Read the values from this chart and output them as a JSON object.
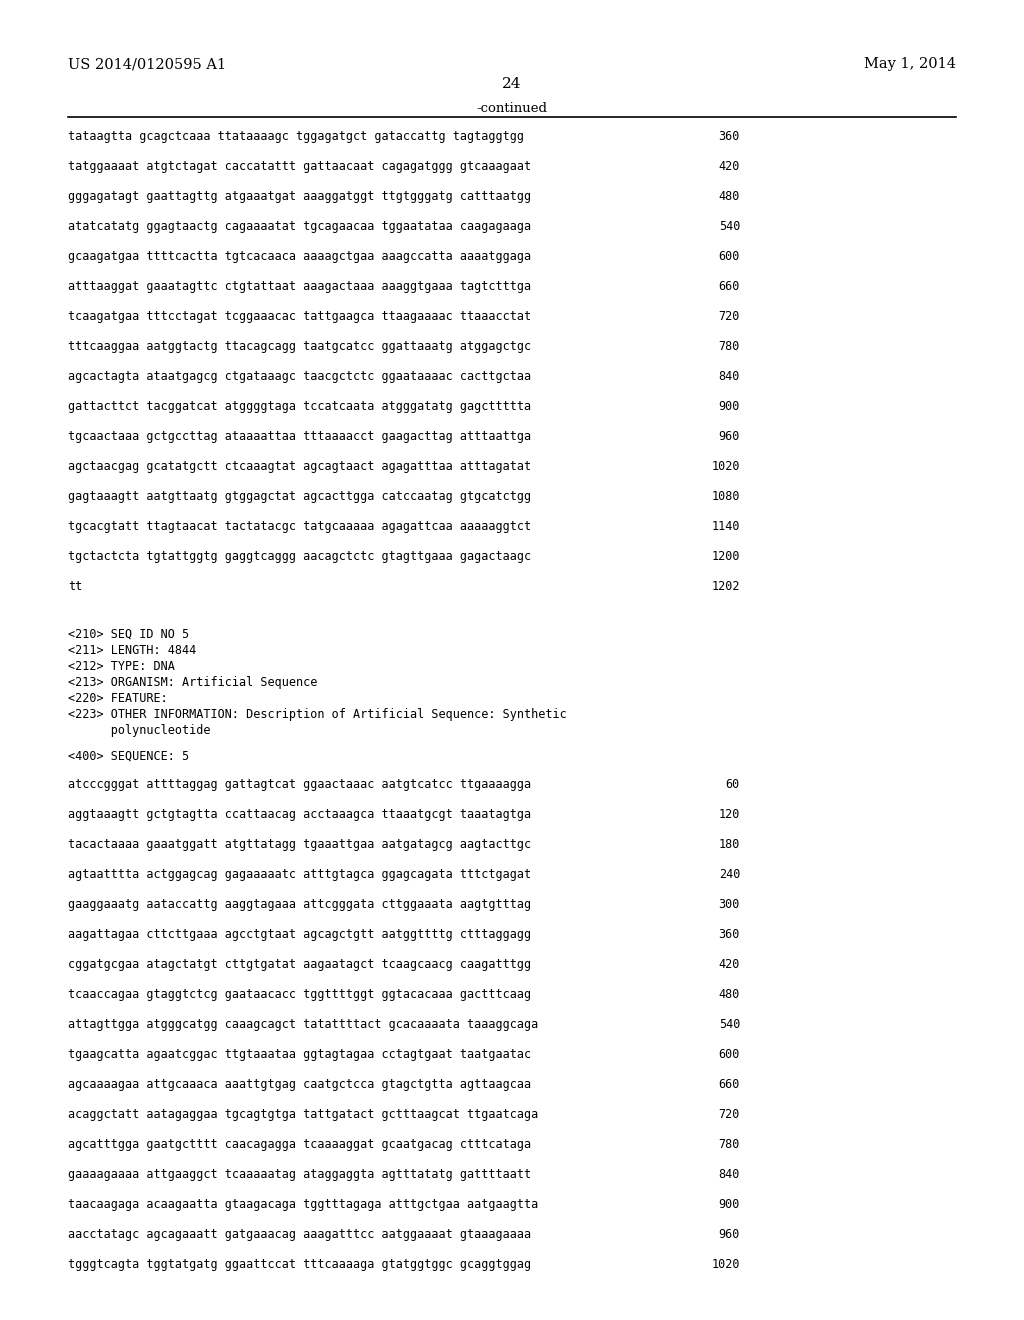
{
  "header_left": "US 2014/0120595 A1",
  "header_right": "May 1, 2014",
  "page_number": "24",
  "continued_label": "-continued",
  "background_color": "#ffffff",
  "text_color": "#000000",
  "mono_font_size": 8.5,
  "sequence_lines": [
    [
      "tataagtta gcagctcaaa ttataaaagc tggagatgct gataccattg tagtaggtgg",
      "360"
    ],
    [
      "tatggaaaat atgtctagat caccatattt gattaacaat cagagatggg gtcaaagaat",
      "420"
    ],
    [
      "gggagatagt gaattagttg atgaaatgat aaaggatggt ttgtgggatg catttaatgg",
      "480"
    ],
    [
      "atatcatatg ggagtaactg cagaaaatat tgcagaacaa tggaatataa caagagaaga",
      "540"
    ],
    [
      "gcaagatgaa ttttcactta tgtcacaaca aaaagctgaa aaagccatta aaaatggaga",
      "600"
    ],
    [
      "atttaaggat gaaatagttc ctgtattaat aaagactaaa aaaggtgaaa tagtctttga",
      "660"
    ],
    [
      "tcaagatgaa tttcctagat tcggaaacac tattgaagca ttaagaaaac ttaaacctat",
      "720"
    ],
    [
      "tttcaaggaa aatggtactg ttacagcagg taatgcatcc ggattaaatg atggagctgc",
      "780"
    ],
    [
      "agcactagta ataatgagcg ctgataaagc taacgctctc ggaataaaac cacttgctaa",
      "840"
    ],
    [
      "gattacttct tacggatcat atggggtaga tccatcaata atgggatatg gagcttttta",
      "900"
    ],
    [
      "tgcaactaaa gctgccttag ataaaattaa tttaaaacct gaagacttag atttaattga",
      "960"
    ],
    [
      "agctaacgag gcatatgctt ctcaaagtat agcagtaact agagatttaa atttagatat",
      "1020"
    ],
    [
      "gagtaaagtt aatgttaatg gtggagctat agcacttgga catccaatag gtgcatctgg",
      "1080"
    ],
    [
      "tgcacgtatt ttagtaacat tactatacgc tatgcaaaaa agagattcaa aaaaaggtct",
      "1140"
    ],
    [
      "tgctactcta tgtattggtg gaggtcaggg aacagctctc gtagttgaaa gagactaagc",
      "1200"
    ],
    [
      "tt",
      "1202"
    ]
  ],
  "metadata_lines": [
    "<210> SEQ ID NO 5",
    "<211> LENGTH: 4844",
    "<212> TYPE: DNA",
    "<213> ORGANISM: Artificial Sequence",
    "<220> FEATURE:",
    "<223> OTHER INFORMATION: Description of Artificial Sequence: Synthetic",
    "      polynucleotide"
  ],
  "seq_label": "<400> SEQUENCE: 5",
  "sequence_lines2": [
    [
      "atcccgggat attttaggag gattagtcat ggaactaaac aatgtcatcc ttgaaaagga",
      "60"
    ],
    [
      "aggtaaagtt gctgtagtta ccattaacag acctaaagca ttaaatgcgt taaatagtga",
      "120"
    ],
    [
      "tacactaaaa gaaatggatt atgttatagg tgaaattgaa aatgatagcg aagtacttgc",
      "180"
    ],
    [
      "agtaatttta actggagcag gagaaaaatc atttgtagca ggagcagata tttctgagat",
      "240"
    ],
    [
      "gaaggaaatg aataccattg aaggtagaaa attcgggata cttggaaata aagtgtttag",
      "300"
    ],
    [
      "aagattagaa cttcttgaaa agcctgtaat agcagctgtt aatggttttg ctttaggagg",
      "360"
    ],
    [
      "cggatgcgaa atagctatgt cttgtgatat aagaatagct tcaagcaacg caagatttgg",
      "420"
    ],
    [
      "tcaaccagaa gtaggtctcg gaataacacc tggttttggt ggtacacaaa gactttcaag",
      "480"
    ],
    [
      "attagttgga atgggcatgg caaagcagct tatattttact gcacaaaata taaaggcaga",
      "540"
    ],
    [
      "tgaagcatta agaatcggac ttgtaaataa ggtagtagaa cctagtgaat taatgaatac",
      "600"
    ],
    [
      "agcaaaagaa attgcaaaca aaattgtgag caatgctcca gtagctgtta agttaagcaa",
      "660"
    ],
    [
      "acaggctatt aatagaggaa tgcagtgtga tattgatact gctttaagcat ttgaatcaga",
      "720"
    ],
    [
      "agcatttgga gaatgctttt caacagagga tcaaaaggat gcaatgacag ctttcataga",
      "780"
    ],
    [
      "gaaaagaaaa attgaaggct tcaaaaatag ataggaggta agtttatatg gattttaatt",
      "840"
    ],
    [
      "taacaagaga acaagaatta gtaagacaga tggtttagaga atttgctgaa aatgaagtta",
      "900"
    ],
    [
      "aacctatagc agcagaaatt gatgaaacag aaagatttcc aatggaaaat gtaaagaaaa",
      "960"
    ],
    [
      "tgggtcagta tggtatgatg ggaattccat tttcaaaaga gtatggtggc gcaggtggag",
      "1020"
    ]
  ]
}
